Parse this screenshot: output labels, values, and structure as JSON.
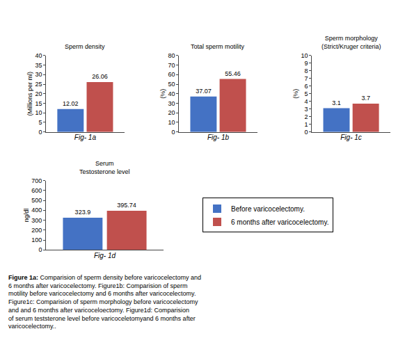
{
  "chart_data": [
    {
      "type": "bar",
      "title": "Sperm density",
      "ylabel": "(Millions per ml)",
      "xlabel": "Fig- 1a",
      "categories": [
        null
      ],
      "series": [
        {
          "name": "Before varicocelectomy.",
          "color": "#4472C4",
          "values": [
            12.02
          ]
        },
        {
          "name": "6 months after varicocelectomy.",
          "color": "#C0504D",
          "values": [
            26.06
          ]
        }
      ],
      "ylim": [
        0,
        40
      ],
      "yticks": [
        0,
        5,
        10,
        15,
        20,
        25,
        30,
        35,
        40
      ],
      "data_labels": true,
      "grid": false,
      "tick_labels": "y"
    },
    {
      "type": "bar",
      "title": "Total sperm motility",
      "ylabel": "(%)",
      "xlabel": "Fig- 1b",
      "categories": [
        null
      ],
      "series": [
        {
          "name": "Before varicocelectomy.",
          "color": "#4472C4",
          "values": [
            37.07
          ]
        },
        {
          "name": "6 months after varicocelectomy.",
          "color": "#C0504D",
          "values": [
            55.46
          ]
        }
      ],
      "ylim": [
        0,
        80
      ],
      "yticks": [
        0,
        10,
        20,
        30,
        40,
        50,
        60,
        70,
        80
      ],
      "data_labels": true,
      "grid": false,
      "tick_labels": "y"
    },
    {
      "type": "bar",
      "title": "Sperm morphology\n(Strict/Kruger criteria)",
      "ylabel": "(%)",
      "xlabel": "Fig- 1c",
      "categories": [
        null
      ],
      "series": [
        {
          "name": "Before varicocelectomy.",
          "color": "#4472C4",
          "values": [
            3.1
          ]
        },
        {
          "name": "6 months after varicocelectomy.",
          "color": "#C0504D",
          "values": [
            3.7
          ]
        }
      ],
      "ylim": [
        0,
        10
      ],
      "yticks": [
        0,
        1,
        2,
        3,
        4,
        5,
        6,
        7,
        8,
        9,
        10
      ],
      "data_labels": true,
      "grid": false,
      "tick_labels": "y"
    },
    {
      "type": "bar",
      "title": "Serum\nTestosterone level",
      "ylabel": "ng/dl",
      "xlabel": "Fig- 1d",
      "categories": [
        null
      ],
      "series": [
        {
          "name": "Before varicocelectomy.",
          "color": "#4472C4",
          "values": [
            323.9
          ]
        },
        {
          "name": "6 months after varicocelectomy.",
          "color": "#C0504D",
          "values": [
            395.74
          ]
        }
      ],
      "ylim": [
        0,
        700
      ],
      "yticks": [
        0,
        100,
        200,
        300,
        400,
        500,
        600,
        700
      ],
      "data_labels": true,
      "grid": false,
      "tick_labels": "y",
      "legend": "right"
    }
  ],
  "annotations": [
    "Figure 1a:",
    " Comparision of sperm density before varicocelectomy and\n6 months after varicocelectomy. Figure1b: Comparision of sperm\nmotility before varicocelectomy and 6 months after varicocelectomy.\nFigure1c: Comparision of sperm morphology before varicocelectomy\nand and 6 months after varicoceloectomy. Figure1d: Comparision\nof serum teststerone level before varicoceletomyand 6 months after\nvaricocelectomy.."
  ]
}
